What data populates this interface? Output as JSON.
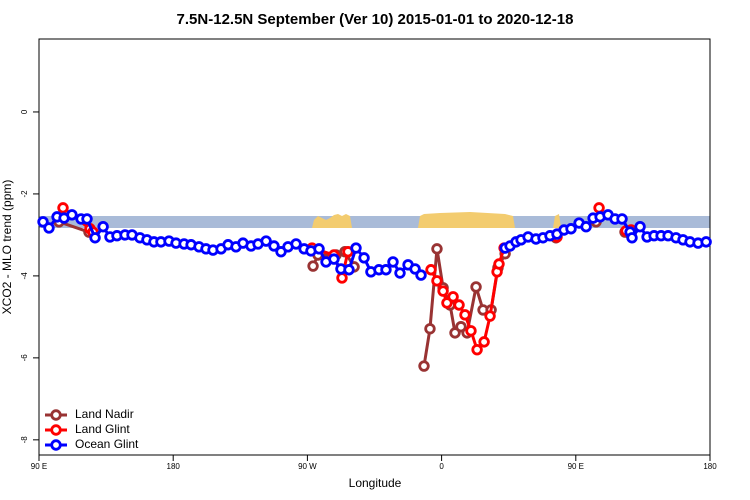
{
  "chart_data": {
    "type": "line",
    "title": "7.5N-12.5N September (Ver 10)   2015-01-01 to 2020-12-18",
    "x_label": "Longitude",
    "y_label": "XCO2 - MLO trend (ppm)",
    "xlim": [
      90,
      540
    ],
    "ylim": [
      -8.37,
      1.78
    ],
    "xticks": [
      {
        "value": 90,
        "label": "90 E"
      },
      {
        "value": 180,
        "label": "180"
      },
      {
        "value": 270,
        "label": "90 W"
      },
      {
        "value": 360,
        "label": "0"
      },
      {
        "value": 450,
        "label": "90 E"
      },
      {
        "value": 540,
        "label": "180"
      }
    ],
    "yticks": [
      0,
      -2,
      -4,
      -6,
      -8
    ],
    "legend": "lower left",
    "series": [
      {
        "name": "Land Nadir",
        "color": "#993333",
        "x": [
          103.4,
          123.5,
          null,
          273.8,
          277.1,
          289.2,
          295.2,
          301.3,
          null,
          348.2,
          352.2,
          356.9,
          361,
          365.7,
          369,
          373,
          377.1,
          383.1,
          387.8,
          393.2,
          397.8,
          402.6,
          null,
          436.7,
          null,
          463.6,
          null,
          483,
          487.1
        ],
        "values": [
          -2.68,
          -2.93,
          null,
          -3.76,
          -3.49,
          -3.49,
          -3.41,
          -3.78,
          null,
          -6.2,
          -5.29,
          -3.34,
          -4.29,
          -4.71,
          -5.39,
          -5.24,
          -5.39,
          -4.27,
          -4.83,
          -4.83,
          -3.8,
          -3.46,
          null,
          -3.07,
          null,
          -2.68,
          null,
          -2.93,
          -3.0
        ]
      },
      {
        "name": "Land Glint",
        "color": "#ff0000",
        "x": [
          106.1,
          124.2,
          126.2,
          null,
          273.1,
          287.8,
          293.2,
          297.2,
          null,
          352.9,
          356.9,
          361,
          363.6,
          367.7,
          371.7,
          375.7,
          379.7,
          383.8,
          388.5,
          392.5,
          397.2,
          398.5,
          401.9,
          null,
          437.4,
          null,
          465.6,
          null,
          483.7,
          487.1
        ],
        "values": [
          -2.34,
          -2.85,
          -2.93,
          null,
          -3.32,
          -3.49,
          -4.05,
          -3.41,
          null,
          -3.85,
          -4.12,
          -4.37,
          -4.66,
          -4.51,
          -4.71,
          -4.95,
          -5.34,
          -5.8,
          -5.61,
          -4.98,
          -3.9,
          -3.71,
          -3.32,
          null,
          -3.05,
          null,
          -2.34,
          null,
          -2.9,
          -2.88
        ]
      },
      {
        "name": "Ocean Glint",
        "color": "#0000ff",
        "x": [
          92.7,
          96.7,
          102.1,
          106.8,
          112.1,
          118.2,
          122.2,
          127.6,
          133,
          137.6,
          142.3,
          147.7,
          152.4,
          157.7,
          162.4,
          167.1,
          171.8,
          177.2,
          181.9,
          187.3,
          192,
          197.3,
          202,
          206.7,
          212.1,
          216.8,
          222.1,
          226.8,
          232.2,
          236.9,
          242.3,
          247.6,
          252.3,
          257,
          262.4,
          267.8,
          272.4,
          277.8,
          282.5,
          287.8,
          292.5,
          297.9,
          302.6,
          308,
          312.6,
          318,
          322.7,
          327.4,
          332.1,
          337.5,
          342.2,
          346.2,
          null,
          402.6,
          405.9,
          409.9,
          413.3,
          418,
          423.3,
          428,
          432.7,
          437.4,
          442.1,
          446.8,
          452.2,
          456.9,
          461.6,
          466.3,
          471.6,
          476.3,
          481,
          486.4,
          487.7,
          493.1,
          497.8,
          502.5,
          507.2,
          511.9,
          517.2,
          521.9,
          526.6,
          532,
          537.4
        ],
        "values": [
          -2.68,
          -2.83,
          -2.56,
          -2.59,
          -2.51,
          -2.61,
          -2.61,
          -3.07,
          -2.8,
          -3.05,
          -3.02,
          -3.0,
          -3.0,
          -3.07,
          -3.12,
          -3.17,
          -3.17,
          -3.15,
          -3.2,
          -3.22,
          -3.24,
          -3.29,
          -3.34,
          -3.37,
          -3.34,
          -3.24,
          -3.29,
          -3.2,
          -3.27,
          -3.22,
          -3.15,
          -3.27,
          -3.41,
          -3.29,
          -3.22,
          -3.34,
          -3.39,
          -3.34,
          -3.66,
          -3.59,
          -3.83,
          -3.85,
          -3.32,
          -3.56,
          -3.9,
          -3.85,
          -3.85,
          -3.66,
          -3.93,
          -3.73,
          -3.83,
          -3.98,
          null,
          -3.32,
          -3.27,
          -3.17,
          -3.12,
          -3.05,
          -3.1,
          -3.07,
          -3.02,
          -2.98,
          -2.88,
          -2.85,
          -2.71,
          -2.8,
          -2.59,
          -2.56,
          -2.51,
          -2.61,
          -2.61,
          -2.93,
          -3.07,
          -2.8,
          -3.05,
          -3.02,
          -3.02,
          -3.02,
          -3.07,
          -3.12,
          -3.17,
          -3.2,
          -3.17
        ]
      }
    ]
  }
}
